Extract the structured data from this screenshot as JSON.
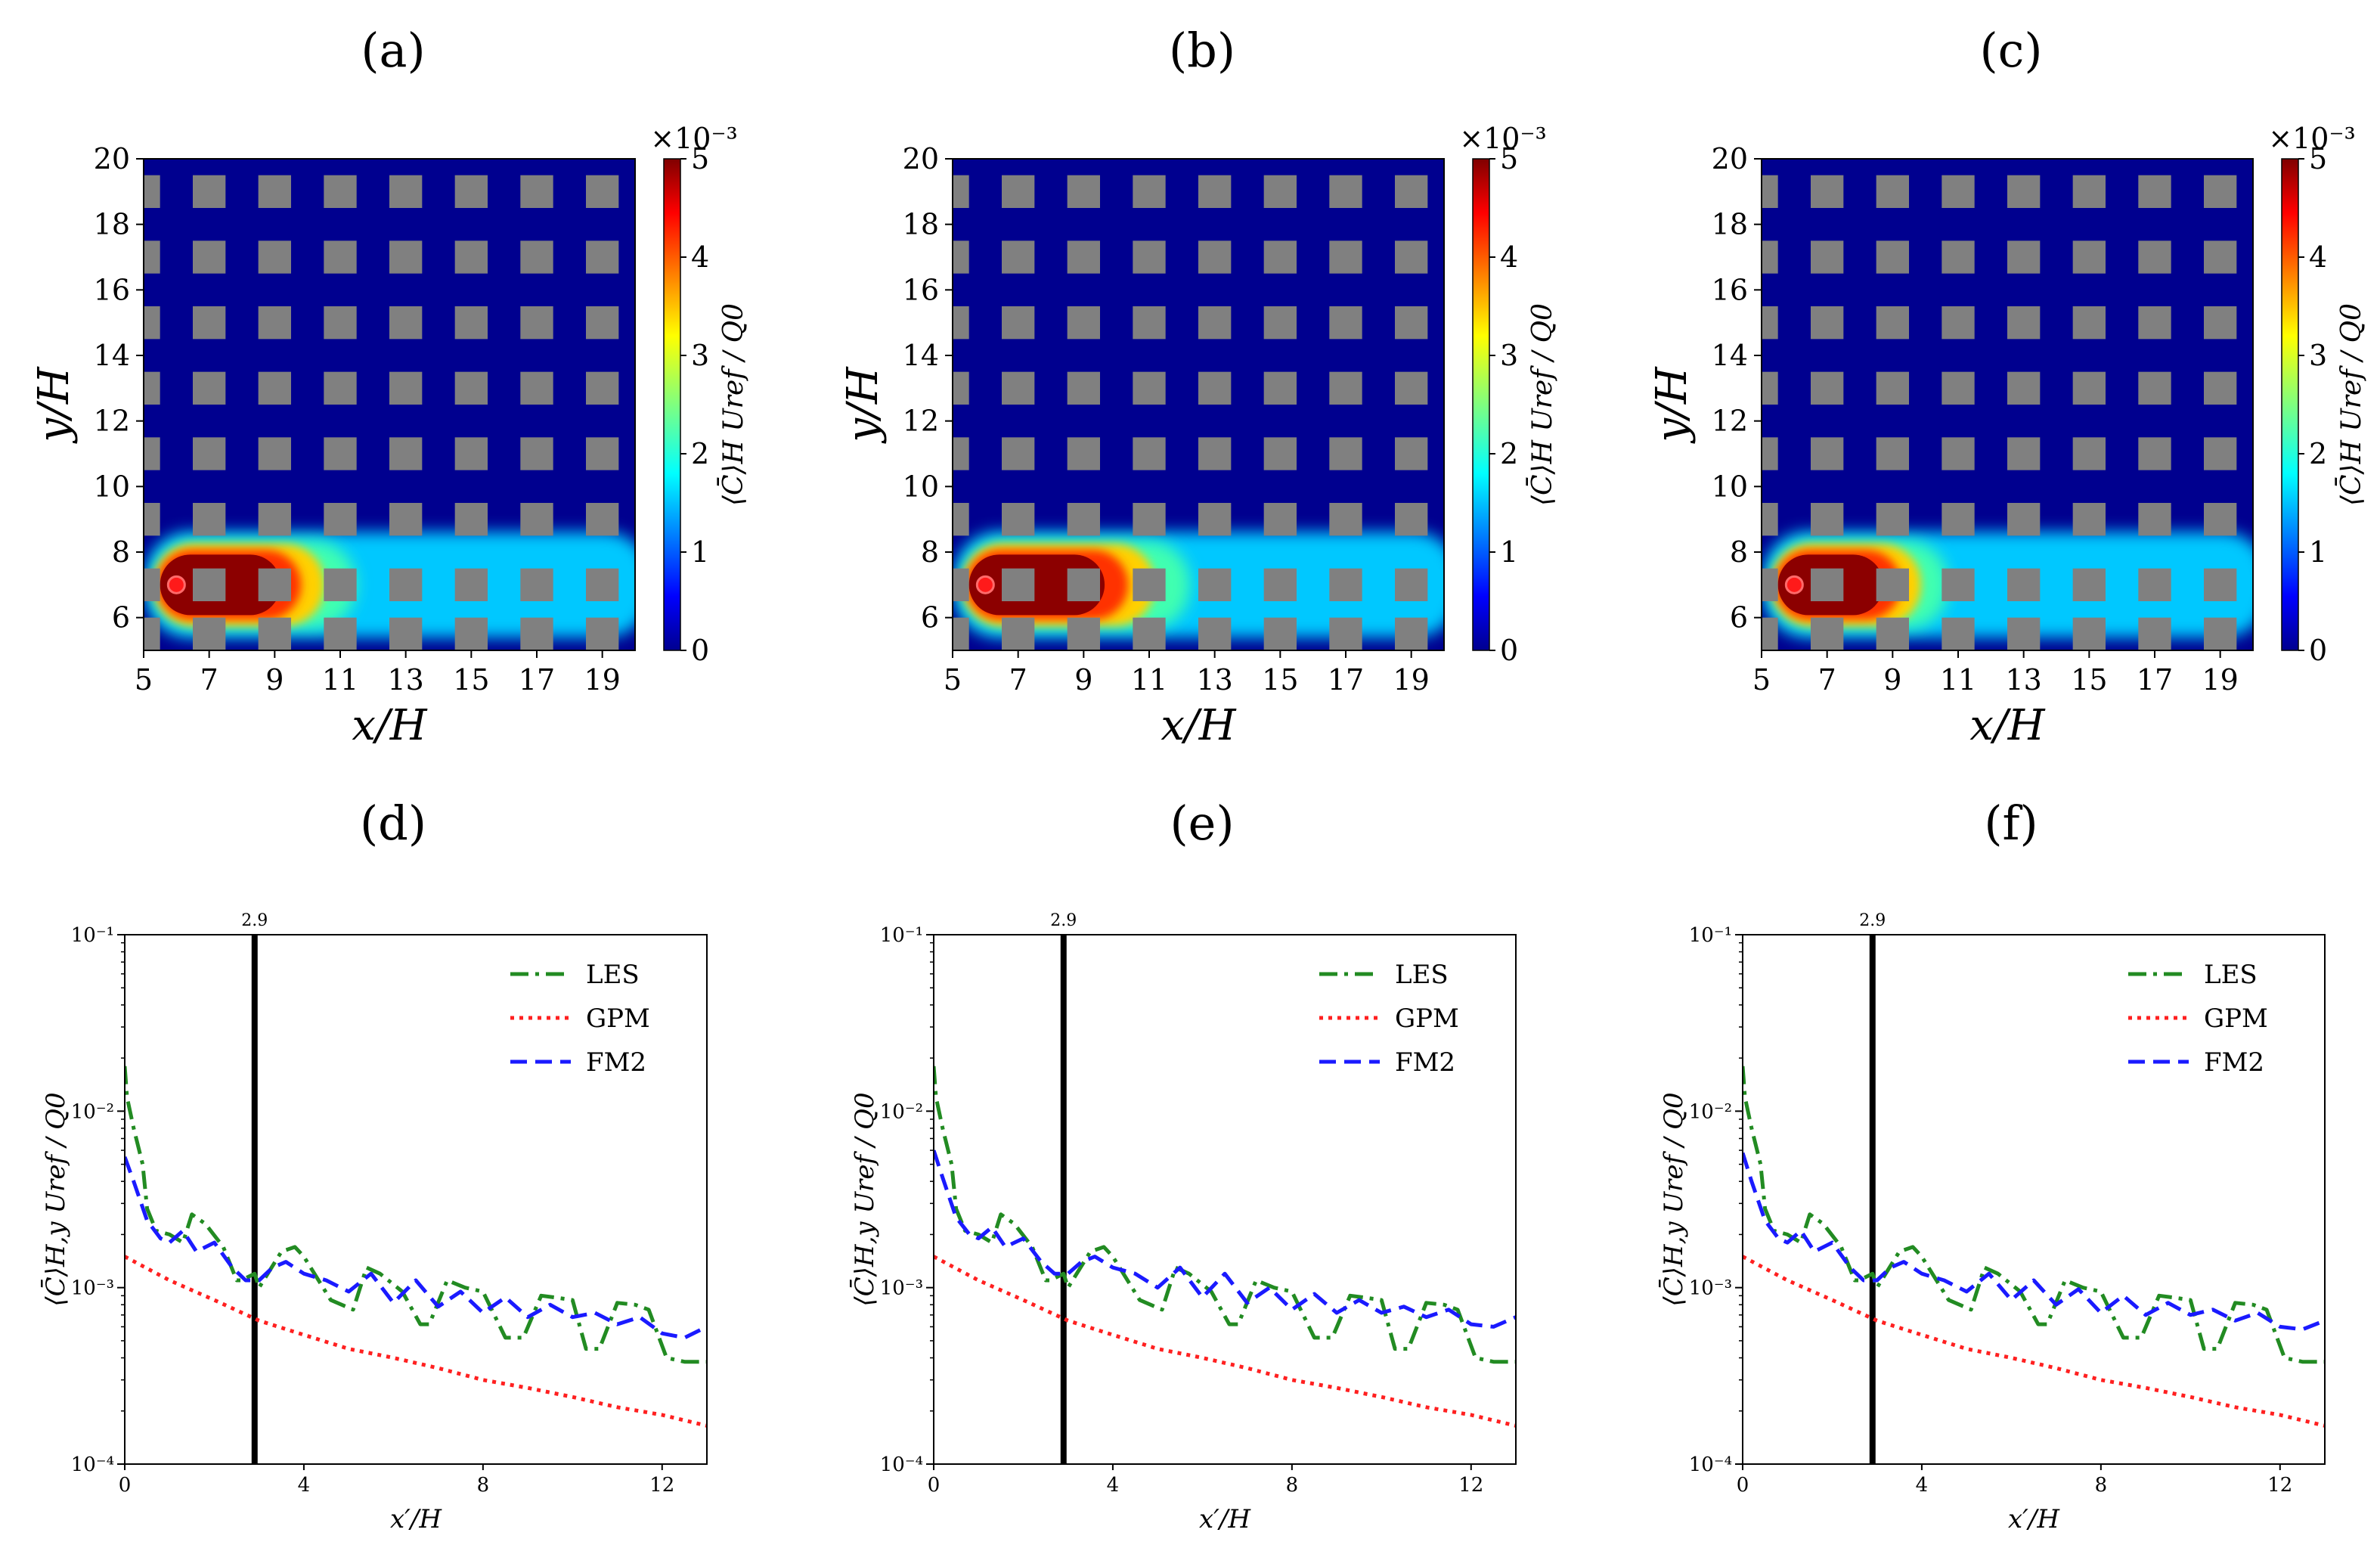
{
  "figure": {
    "panel_labels": [
      "(a)",
      "(b)",
      "(c)",
      "(d)",
      "(e)",
      "(f)"
    ]
  },
  "chart_data": [
    {
      "panel": "(a)",
      "type": "heatmap",
      "xlabel": "x/H",
      "ylabel": "y/H",
      "xlim": [
        5,
        20
      ],
      "ylim": [
        5,
        20
      ],
      "xticks": [
        5,
        7,
        9,
        11,
        13,
        15,
        17,
        19
      ],
      "yticks": [
        6,
        8,
        10,
        12,
        14,
        16,
        18,
        20
      ],
      "colorbar": {
        "label": "⟨C̄⟩H Uref / Q0",
        "min": 0,
        "max": 5,
        "ticks": [
          0,
          1,
          2,
          3,
          4,
          5
        ],
        "scale_text": "×10⁻³"
      },
      "source": {
        "x": 6,
        "y": 7
      },
      "plume": {
        "centre_y": 7,
        "head_x": 5.5,
        "red_end_x": 9.5,
        "fade_end_x": 20
      }
    },
    {
      "panel": "(b)",
      "type": "heatmap",
      "xlabel": "x/H",
      "ylabel": "y/H",
      "xlim": [
        5,
        20
      ],
      "ylim": [
        5,
        20
      ],
      "xticks": [
        5,
        7,
        9,
        11,
        13,
        15,
        17,
        19
      ],
      "yticks": [
        6,
        8,
        10,
        12,
        14,
        16,
        18,
        20
      ],
      "colorbar": {
        "label": "⟨C̄⟩H Uref / Q0",
        "min": 0,
        "max": 5,
        "ticks": [
          0,
          1,
          2,
          3,
          4,
          5
        ],
        "scale_text": "×10⁻³"
      },
      "source": {
        "x": 6,
        "y": 7
      },
      "plume": {
        "centre_y": 7,
        "head_x": 5.5,
        "red_end_x": 10,
        "fade_end_x": 20
      }
    },
    {
      "panel": "(c)",
      "type": "heatmap",
      "xlabel": "x/H",
      "ylabel": "y/H",
      "xlim": [
        5,
        20
      ],
      "ylim": [
        5,
        20
      ],
      "xticks": [
        5,
        7,
        9,
        11,
        13,
        15,
        17,
        19
      ],
      "yticks": [
        6,
        8,
        10,
        12,
        14,
        16,
        18,
        20
      ],
      "colorbar": {
        "label": "⟨C̄⟩H Uref / Q0",
        "min": 0,
        "max": 5,
        "ticks": [
          0,
          1,
          2,
          3,
          4,
          5
        ],
        "scale_text": "×10⁻³"
      },
      "source": {
        "x": 6,
        "y": 7
      },
      "plume": {
        "centre_y": 7,
        "head_x": 5.5,
        "red_end_x": 9,
        "fade_end_x": 20
      }
    },
    {
      "panel": "(d)",
      "type": "line",
      "xlabel": "x′/H",
      "ylabel": "⟨C̄⟩H,y Uref / Q0",
      "xlim": [
        0,
        13
      ],
      "ylim": [
        0.0001,
        0.1
      ],
      "yscale": "log",
      "xticks": [
        0,
        4,
        8,
        12
      ],
      "yticks": [
        "10⁻⁴",
        "10⁻³",
        "10⁻²",
        "10⁻¹"
      ],
      "vline": {
        "x": 2.9,
        "label": "2.9"
      },
      "legend": [
        "LES",
        "GPM",
        "FM2"
      ],
      "series": [
        {
          "name": "LES",
          "x": [
            0,
            0.05,
            0.2,
            0.4,
            0.5,
            0.7,
            1.0,
            1.3,
            1.5,
            1.8,
            2.2,
            2.5,
            2.6,
            2.9,
            3.0,
            3.5,
            3.8,
            4.0,
            4.6,
            5.1,
            5.4,
            5.7,
            6.2,
            6.6,
            6.8,
            7.2,
            7.6,
            8.0,
            8.5,
            8.9,
            9.3,
            9.6,
            10.0,
            10.3,
            10.6,
            11.0,
            11.4,
            11.7,
            12.1,
            12.5,
            12.8,
            13.0
          ],
          "y": [
            0.018,
            0.012,
            0.008,
            0.005,
            0.0028,
            0.0021,
            0.002,
            0.0018,
            0.0026,
            0.0023,
            0.0017,
            0.0011,
            0.0011,
            0.0012,
            0.001,
            0.0016,
            0.0017,
            0.0015,
            0.00085,
            0.00075,
            0.0013,
            0.0012,
            0.00095,
            0.00062,
            0.00062,
            0.0011,
            0.001,
            0.00095,
            0.00052,
            0.00052,
            0.0009,
            0.00088,
            0.00085,
            0.00045,
            0.00045,
            0.00082,
            0.0008,
            0.00075,
            0.0004,
            0.00038,
            0.00038,
            0.00038
          ]
        },
        {
          "name": "GPM",
          "x": [
            0,
            1,
            2,
            3,
            4,
            5,
            6,
            7,
            8,
            9,
            10,
            11,
            12,
            13
          ],
          "y": [
            0.0015,
            0.0011,
            0.00085,
            0.00065,
            0.00054,
            0.00045,
            0.0004,
            0.00035,
            0.0003,
            0.00027,
            0.00024,
            0.00021,
            0.00019,
            0.000165
          ]
        },
        {
          "name": "FM2",
          "x": [
            0,
            0.2,
            0.5,
            0.8,
            1.0,
            1.3,
            1.6,
            2.0,
            2.4,
            2.7,
            3.0,
            3.3,
            3.6,
            4.0,
            4.5,
            5.0,
            5.5,
            6.0,
            6.5,
            7.0,
            7.5,
            8.0,
            8.5,
            9.0,
            9.5,
            10.0,
            10.5,
            11.0,
            11.5,
            12.0,
            12.5,
            13.0
          ],
          "y": [
            0.0055,
            0.004,
            0.0024,
            0.0019,
            0.0018,
            0.0021,
            0.0016,
            0.0018,
            0.0013,
            0.0011,
            0.0011,
            0.0013,
            0.0014,
            0.0012,
            0.0011,
            0.00095,
            0.0012,
            0.00082,
            0.0011,
            0.00078,
            0.00095,
            0.00072,
            0.00088,
            0.00068,
            0.0008,
            0.00068,
            0.00072,
            0.00062,
            0.00068,
            0.00055,
            0.00052,
            0.0006
          ]
        }
      ]
    },
    {
      "panel": "(e)",
      "type": "line",
      "xlabel": "x′/H",
      "ylabel": "⟨C̄⟩H,y Uref / Q0",
      "xlim": [
        0,
        13
      ],
      "ylim": [
        0.0001,
        0.1
      ],
      "yscale": "log",
      "xticks": [
        0,
        4,
        8,
        12
      ],
      "yticks": [
        "10⁻⁴",
        "10⁻³",
        "10⁻²",
        "10⁻¹"
      ],
      "vline": {
        "x": 2.9,
        "label": "2.9"
      },
      "legend": [
        "LES",
        "GPM",
        "FM2"
      ],
      "series": [
        {
          "name": "LES",
          "x": [
            0,
            0.05,
            0.2,
            0.4,
            0.5,
            0.7,
            1.0,
            1.3,
            1.5,
            1.8,
            2.2,
            2.5,
            2.6,
            2.9,
            3.0,
            3.5,
            3.8,
            4.0,
            4.6,
            5.1,
            5.4,
            5.7,
            6.2,
            6.6,
            6.8,
            7.2,
            7.6,
            8.0,
            8.5,
            8.9,
            9.3,
            9.6,
            10.0,
            10.3,
            10.6,
            11.0,
            11.4,
            11.7,
            12.1,
            12.5,
            12.8,
            13.0
          ],
          "y": [
            0.018,
            0.012,
            0.008,
            0.005,
            0.0028,
            0.0021,
            0.002,
            0.0018,
            0.0026,
            0.0023,
            0.0017,
            0.0011,
            0.0011,
            0.0012,
            0.001,
            0.0016,
            0.0017,
            0.0015,
            0.00085,
            0.00075,
            0.0013,
            0.0012,
            0.00095,
            0.00062,
            0.00062,
            0.0011,
            0.001,
            0.00095,
            0.00052,
            0.00052,
            0.0009,
            0.00088,
            0.00085,
            0.00045,
            0.00045,
            0.00082,
            0.0008,
            0.00075,
            0.0004,
            0.00038,
            0.00038,
            0.00038
          ]
        },
        {
          "name": "GPM",
          "x": [
            0,
            1,
            2,
            3,
            4,
            5,
            6,
            7,
            8,
            9,
            10,
            11,
            12,
            13
          ],
          "y": [
            0.0015,
            0.0011,
            0.00085,
            0.00065,
            0.00054,
            0.00045,
            0.0004,
            0.00035,
            0.0003,
            0.00027,
            0.00024,
            0.00021,
            0.00019,
            0.000165
          ]
        },
        {
          "name": "FM2",
          "x": [
            0,
            0.2,
            0.5,
            0.8,
            1.0,
            1.3,
            1.6,
            2.0,
            2.4,
            2.7,
            3.0,
            3.3,
            3.6,
            4.0,
            4.5,
            5.0,
            5.5,
            6.0,
            6.5,
            7.0,
            7.5,
            8.0,
            8.5,
            9.0,
            9.5,
            10.0,
            10.5,
            11.0,
            11.5,
            12.0,
            12.5,
            13.0
          ],
          "y": [
            0.006,
            0.0042,
            0.0025,
            0.002,
            0.0019,
            0.0022,
            0.0017,
            0.0019,
            0.0014,
            0.0012,
            0.0012,
            0.0014,
            0.0015,
            0.0013,
            0.0012,
            0.001,
            0.0013,
            0.00088,
            0.0012,
            0.00082,
            0.001,
            0.00075,
            0.00092,
            0.00072,
            0.00085,
            0.00072,
            0.00078,
            0.00068,
            0.00075,
            0.00062,
            0.0006,
            0.00068
          ]
        }
      ]
    },
    {
      "panel": "(f)",
      "type": "line",
      "xlabel": "x′/H",
      "ylabel": "⟨C̄⟩H,y Uref / Q0",
      "xlim": [
        0,
        13
      ],
      "ylim": [
        0.0001,
        0.1
      ],
      "yscale": "log",
      "xticks": [
        0,
        4,
        8,
        12
      ],
      "yticks": [
        "10⁻⁴",
        "10⁻³",
        "10⁻²",
        "10⁻¹"
      ],
      "vline": {
        "x": 2.9,
        "label": "2.9"
      },
      "legend": [
        "LES",
        "GPM",
        "FM2"
      ],
      "series": [
        {
          "name": "LES",
          "x": [
            0,
            0.05,
            0.2,
            0.4,
            0.5,
            0.7,
            1.0,
            1.3,
            1.5,
            1.8,
            2.2,
            2.5,
            2.6,
            2.9,
            3.0,
            3.5,
            3.8,
            4.0,
            4.6,
            5.1,
            5.4,
            5.7,
            6.2,
            6.6,
            6.8,
            7.2,
            7.6,
            8.0,
            8.5,
            8.9,
            9.3,
            9.6,
            10.0,
            10.3,
            10.6,
            11.0,
            11.4,
            11.7,
            12.1,
            12.5,
            12.8,
            13.0
          ],
          "y": [
            0.018,
            0.012,
            0.008,
            0.005,
            0.0028,
            0.0021,
            0.002,
            0.0018,
            0.0026,
            0.0023,
            0.0017,
            0.0011,
            0.0011,
            0.0012,
            0.001,
            0.0016,
            0.0017,
            0.0015,
            0.00085,
            0.00075,
            0.0013,
            0.0012,
            0.00095,
            0.00062,
            0.00062,
            0.0011,
            0.001,
            0.00095,
            0.00052,
            0.00052,
            0.0009,
            0.00088,
            0.00085,
            0.00045,
            0.00045,
            0.00082,
            0.0008,
            0.00075,
            0.0004,
            0.00038,
            0.00038,
            0.00038
          ]
        },
        {
          "name": "GPM",
          "x": [
            0,
            1,
            2,
            3,
            4,
            5,
            6,
            7,
            8,
            9,
            10,
            11,
            12,
            13
          ],
          "y": [
            0.0015,
            0.0011,
            0.00085,
            0.00065,
            0.00054,
            0.00045,
            0.0004,
            0.00035,
            0.0003,
            0.00027,
            0.00024,
            0.00021,
            0.00019,
            0.000165
          ]
        },
        {
          "name": "FM2",
          "x": [
            0,
            0.2,
            0.5,
            0.8,
            1.0,
            1.3,
            1.6,
            2.0,
            2.4,
            2.7,
            3.0,
            3.3,
            3.6,
            4.0,
            4.5,
            5.0,
            5.5,
            6.0,
            6.5,
            7.0,
            7.5,
            8.0,
            8.5,
            9.0,
            9.5,
            10.0,
            10.5,
            11.0,
            11.5,
            12.0,
            12.5,
            13.0
          ],
          "y": [
            0.0058,
            0.004,
            0.0024,
            0.0019,
            0.0018,
            0.0021,
            0.0016,
            0.0018,
            0.0013,
            0.0011,
            0.0011,
            0.0013,
            0.0014,
            0.0012,
            0.0011,
            0.00095,
            0.0012,
            0.00085,
            0.0011,
            0.0008,
            0.00098,
            0.00072,
            0.0009,
            0.0007,
            0.00082,
            0.0007,
            0.00075,
            0.00065,
            0.00072,
            0.0006,
            0.00058,
            0.00065
          ]
        }
      ]
    }
  ],
  "colors": {
    "LES": "#228b22",
    "GPM": "#ff2020",
    "FM2": "#1a1aff",
    "vline": "#000000",
    "building": "#808080",
    "background": "#00008f"
  }
}
